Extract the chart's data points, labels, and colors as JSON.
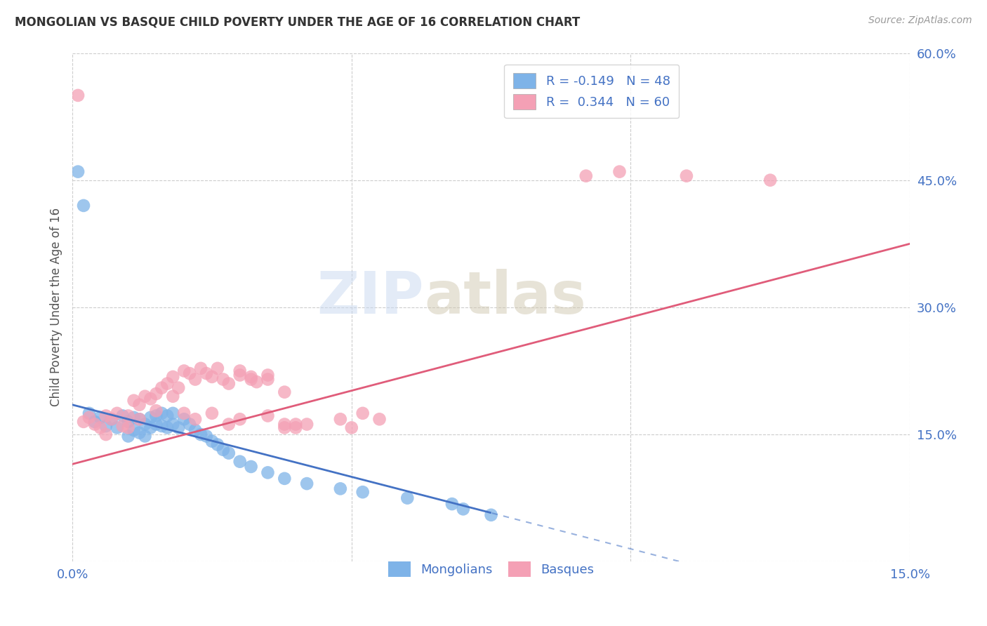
{
  "title": "MONGOLIAN VS BASQUE CHILD POVERTY UNDER THE AGE OF 16 CORRELATION CHART",
  "source": "Source: ZipAtlas.com",
  "ylabel": "Child Poverty Under the Age of 16",
  "xlim": [
    0.0,
    0.15
  ],
  "ylim": [
    0.0,
    0.6
  ],
  "xticks": [
    0.0,
    0.05,
    0.1,
    0.15
  ],
  "xtick_labels": [
    "0.0%",
    "",
    "",
    "15.0%"
  ],
  "yticks": [
    0.0,
    0.15,
    0.3,
    0.45,
    0.6
  ],
  "ytick_labels": [
    "",
    "15.0%",
    "30.0%",
    "45.0%",
    "60.0%"
  ],
  "mongolian_color": "#7EB3E8",
  "basque_color": "#F4A0B5",
  "mongolian_R": -0.149,
  "mongolian_N": 48,
  "basque_R": 0.344,
  "basque_N": 60,
  "trend_mongolian_color": "#4472C4",
  "trend_basque_color": "#E05C7A",
  "trend_mongolian_solid_end": 0.075,
  "watermark_zip": "ZIP",
  "watermark_atlas": "atlas",
  "legend_mongolian": "Mongolians",
  "legend_basque": "Basques",
  "mongolian_scatter_x": [
    0.001,
    0.002,
    0.003,
    0.004,
    0.005,
    0.006,
    0.007,
    0.008,
    0.009,
    0.01,
    0.01,
    0.011,
    0.011,
    0.012,
    0.012,
    0.013,
    0.013,
    0.014,
    0.014,
    0.015,
    0.015,
    0.016,
    0.016,
    0.017,
    0.017,
    0.018,
    0.018,
    0.019,
    0.02,
    0.021,
    0.022,
    0.023,
    0.024,
    0.025,
    0.026,
    0.027,
    0.028,
    0.03,
    0.032,
    0.035,
    0.038,
    0.042,
    0.048,
    0.052,
    0.06,
    0.068,
    0.07,
    0.075
  ],
  "mongolian_scatter_y": [
    0.46,
    0.42,
    0.175,
    0.165,
    0.17,
    0.16,
    0.168,
    0.158,
    0.172,
    0.165,
    0.148,
    0.17,
    0.155,
    0.168,
    0.152,
    0.162,
    0.148,
    0.17,
    0.158,
    0.172,
    0.162,
    0.175,
    0.16,
    0.172,
    0.158,
    0.175,
    0.162,
    0.158,
    0.168,
    0.162,
    0.155,
    0.15,
    0.148,
    0.142,
    0.138,
    0.132,
    0.128,
    0.118,
    0.112,
    0.105,
    0.098,
    0.092,
    0.086,
    0.082,
    0.075,
    0.068,
    0.062,
    0.055
  ],
  "basque_scatter_x": [
    0.001,
    0.002,
    0.003,
    0.004,
    0.005,
    0.006,
    0.006,
    0.007,
    0.008,
    0.009,
    0.01,
    0.01,
    0.011,
    0.012,
    0.012,
    0.013,
    0.014,
    0.015,
    0.015,
    0.016,
    0.017,
    0.018,
    0.018,
    0.019,
    0.02,
    0.021,
    0.022,
    0.023,
    0.024,
    0.025,
    0.026,
    0.027,
    0.028,
    0.03,
    0.032,
    0.033,
    0.035,
    0.038,
    0.04,
    0.042,
    0.048,
    0.05,
    0.052,
    0.055,
    0.03,
    0.032,
    0.035,
    0.038,
    0.02,
    0.022,
    0.025,
    0.028,
    0.03,
    0.035,
    0.038,
    0.04,
    0.092,
    0.098,
    0.11,
    0.125
  ],
  "basque_scatter_y": [
    0.55,
    0.165,
    0.17,
    0.162,
    0.158,
    0.172,
    0.15,
    0.168,
    0.175,
    0.16,
    0.172,
    0.158,
    0.19,
    0.185,
    0.168,
    0.195,
    0.192,
    0.198,
    0.178,
    0.205,
    0.21,
    0.218,
    0.195,
    0.205,
    0.225,
    0.222,
    0.215,
    0.228,
    0.222,
    0.218,
    0.228,
    0.215,
    0.21,
    0.225,
    0.218,
    0.212,
    0.215,
    0.162,
    0.158,
    0.162,
    0.168,
    0.158,
    0.175,
    0.168,
    0.22,
    0.215,
    0.22,
    0.2,
    0.175,
    0.168,
    0.175,
    0.162,
    0.168,
    0.172,
    0.158,
    0.162,
    0.455,
    0.46,
    0.455,
    0.45
  ],
  "trend_mongolian_intercept": 0.185,
  "trend_mongolian_slope": -1.7,
  "trend_basque_intercept": 0.115,
  "trend_basque_slope": 1.733
}
